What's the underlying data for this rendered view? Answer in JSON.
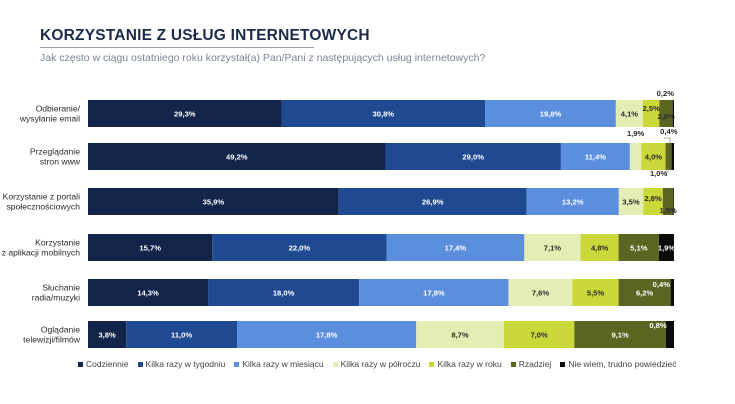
{
  "header": {
    "title": "KORZYSTANIE Z USŁUG INTERNETOWYCH",
    "subtitle": "Jak często w ciągu ostatniego roku korzystał(a) Pan/Pani z następujących usług internetowych?"
  },
  "chart_data": {
    "type": "bar",
    "orientation": "horizontal-stacked-100",
    "title": "KORZYSTANIE Z USŁUG INTERNETOWYCH",
    "categories": [
      [
        "Odbieranie/",
        "wysyłanie email"
      ],
      [
        "Przeglądanie",
        "stron www"
      ],
      [
        "Korzystanie z portali",
        "społecznościowych"
      ],
      [
        "Korzystanie",
        "z aplikacji mobilnych"
      ],
      [
        "Słuchanie",
        "radia/muzyki"
      ],
      [
        "Oglądanie",
        "telewizji/filmów"
      ]
    ],
    "series": [
      {
        "name": "Codziennie",
        "color": "#13244a",
        "values": [
          29.3,
          49.2,
          35.9,
          15.7,
          14.3,
          3.8
        ],
        "labels": [
          "29,3%",
          "49,2%",
          "35,9%",
          "15,7%",
          "14,3%",
          "3,8%"
        ]
      },
      {
        "name": "Kilka razy w tygodniu",
        "color": "#1f4a92",
        "values": [
          30.8,
          29.0,
          26.9,
          22.0,
          18.0,
          11.0
        ],
        "labels": [
          "30,8%",
          "29,0%",
          "26,9%",
          "22,0%",
          "18,0%",
          "11,0%"
        ]
      },
      {
        "name": "Kilka razy w miesiącu",
        "color": "#5b8fde",
        "values": [
          19.8,
          11.4,
          13.2,
          17.4,
          17.8,
          17.8
        ],
        "labels": [
          "19,8%",
          "11,4%",
          "13,2%",
          "17,4%",
          "17,8%",
          "17,8%"
        ]
      },
      {
        "name": "Kilka razy w półroczu",
        "color": "#e6edb4",
        "values": [
          4.1,
          1.9,
          3.5,
          7.1,
          7.6,
          8.7
        ],
        "labels": [
          "4,1%",
          "1,9%",
          "3,5%",
          "7,1%",
          "7,6%",
          "8,7%"
        ]
      },
      {
        "name": "Kilka razy w roku",
        "color": "#cbd83a",
        "values": [
          2.5,
          4.0,
          2.8,
          4.8,
          5.5,
          7.0
        ],
        "labels": [
          "2,5%",
          "4,0%",
          "2,8%",
          "4,8%",
          "5,5%",
          "7,0%"
        ]
      },
      {
        "name": "Rzadziej",
        "color": "#5b6420",
        "values": [
          2.0,
          1.0,
          1.5,
          5.1,
          6.2,
          9.1
        ],
        "labels": [
          "2,0%",
          "1,0%",
          "1,5%",
          "5,1%",
          "6,2%",
          "9,1%"
        ]
      },
      {
        "name": "Nie wiem, trudno powiedzieć",
        "color": "#0b0b0b",
        "values": [
          0.2,
          0.4,
          0.1,
          1.9,
          0.4,
          0.8
        ],
        "labels": [
          "0,2%",
          "0,4%",
          "",
          "1,9%",
          "0,4%",
          "0,8%"
        ]
      }
    ],
    "legend_position": "bottom",
    "grid": false
  }
}
